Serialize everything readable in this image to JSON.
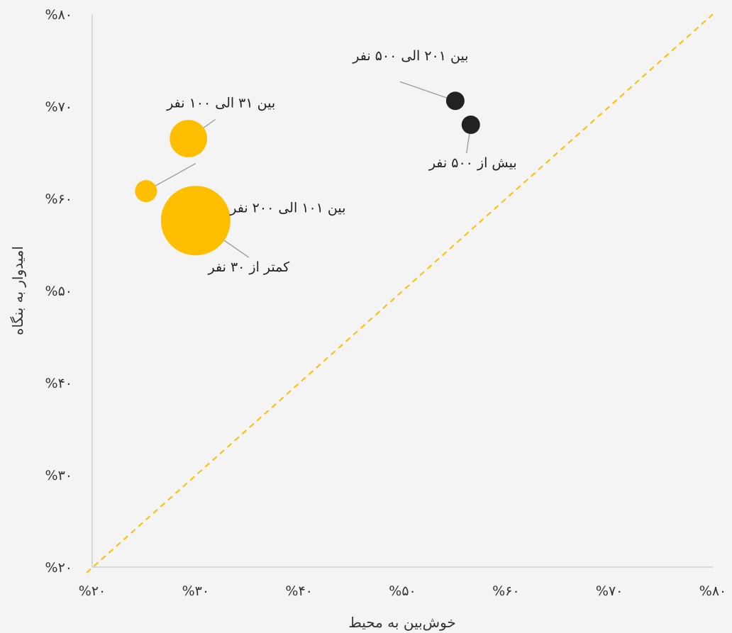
{
  "chart_data": {
    "type": "scatter",
    "subtype": "bubble",
    "xlabel": "خوش‌بین به محیط",
    "ylabel": "امیدوار به بنگاه",
    "xlim": [
      20,
      80
    ],
    "ylim": [
      20,
      80
    ],
    "x_ticks": [
      20,
      30,
      40,
      50,
      60,
      70,
      80
    ],
    "y_ticks": [
      20,
      30,
      40,
      50,
      60,
      70,
      80
    ],
    "x_tick_labels": [
      "%۲۰",
      "%۳۰",
      "%۴۰",
      "%۵۰",
      "%۶۰",
      "%۷۰",
      "%۸۰"
    ],
    "y_tick_labels": [
      "%۲۰",
      "%۳۰",
      "%۴۰",
      "%۵۰",
      "%۶۰",
      "%۷۰",
      "%۸۰"
    ],
    "grid": false,
    "reference_line": {
      "style": "dashed",
      "color": "#FFBF00",
      "from": [
        20,
        20
      ],
      "to": [
        80,
        80
      ]
    },
    "points": [
      {
        "label": "کمتر از ۳۰ نفر",
        "x": 30.0,
        "y": 57.6,
        "size": 100,
        "color": "#FFBF00"
      },
      {
        "label": "بین ۳۱ الی ۱۰۰ نفر",
        "x": 29.3,
        "y": 66.5,
        "size": 29,
        "color": "#FFBF00"
      },
      {
        "label": "بین ۱۰۱ الی ۲۰۰ نفر",
        "x": 25.2,
        "y": 60.8,
        "size": 10,
        "color": "#FFBF00"
      },
      {
        "label": "بین ۲۰۱ الی ۵۰۰ نفر",
        "x": 55.1,
        "y": 70.6,
        "size": 7,
        "color": "#222222"
      },
      {
        "label": "بیش از ۵۰۰ نفر",
        "x": 56.6,
        "y": 68.0,
        "size": 7,
        "color": "#222222"
      }
    ]
  }
}
